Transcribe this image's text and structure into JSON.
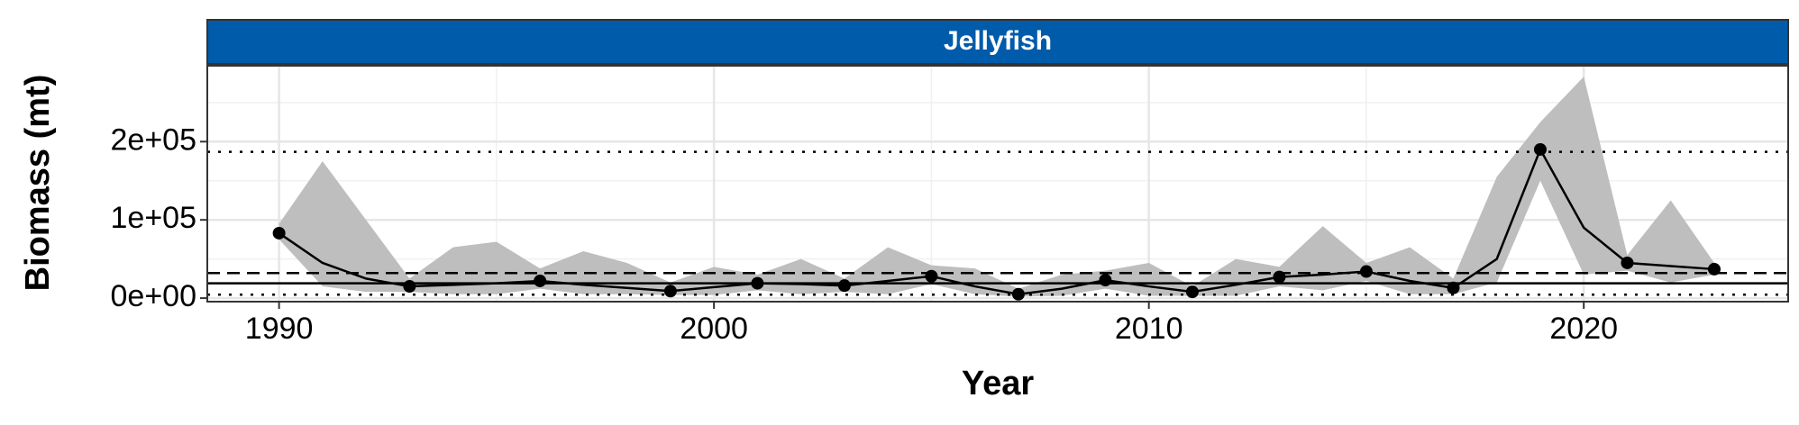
{
  "chart_data": {
    "type": "line",
    "title": "Jellyfish",
    "x_label": "Year",
    "y_label": "Biomass (mt)",
    "strip_color": "#005BAA",
    "x": [
      1990,
      1991,
      1992,
      1993,
      1994,
      1995,
      1996,
      1997,
      1998,
      1999,
      2000,
      2001,
      2002,
      2003,
      2004,
      2005,
      2006,
      2007,
      2008,
      2009,
      2010,
      2011,
      2012,
      2013,
      2014,
      2015,
      2016,
      2017,
      2018,
      2019,
      2020,
      2021,
      2022,
      2023
    ],
    "series": [
      {
        "color": "#000000",
        "values": [
          83000,
          45000,
          25000,
          15000,
          17000,
          19000,
          22000,
          17000,
          13000,
          9000,
          14000,
          19000,
          18000,
          16000,
          22000,
          28000,
          15000,
          5000,
          12000,
          23000,
          15000,
          8000,
          17000,
          27000,
          30000,
          34000,
          22000,
          13000,
          50000,
          190000,
          90000,
          45000,
          41000,
          37000
        ]
      }
    ],
    "points": [
      83000,
      null,
      null,
      15000,
      null,
      null,
      22000,
      null,
      null,
      9000,
      null,
      19000,
      null,
      16000,
      null,
      28000,
      null,
      5000,
      null,
      23000,
      null,
      8000,
      null,
      27000,
      null,
      34000,
      null,
      13000,
      null,
      190000,
      null,
      45000,
      null,
      37000
    ],
    "ribbon": {
      "color": "#bebebe",
      "upper": [
        95000,
        175000,
        100000,
        25000,
        65000,
        72000,
        38000,
        60000,
        45000,
        20000,
        40000,
        30000,
        50000,
        25000,
        65000,
        42000,
        38000,
        12000,
        30000,
        35000,
        45000,
        15000,
        50000,
        40000,
        92000,
        45000,
        65000,
        25000,
        155000,
        225000,
        283000,
        55000,
        125000,
        45000
      ],
      "lower": [
        75000,
        15000,
        8000,
        8000,
        5000,
        5000,
        12000,
        5000,
        5000,
        4000,
        4000,
        10000,
        5000,
        8000,
        5000,
        18000,
        5000,
        2000,
        3000,
        12000,
        3000,
        3000,
        3000,
        15000,
        10000,
        22000,
        5000,
        5000,
        20000,
        150000,
        30000,
        35000,
        20000,
        30000
      ]
    },
    "hlines": [
      {
        "value": 187000,
        "dash": "3,9"
      },
      {
        "value": 32000,
        "dash": "14,8"
      },
      {
        "value": 19000,
        "dash": "none"
      },
      {
        "value": 4400,
        "dash": "3,9"
      }
    ],
    "xlim": [
      1988.35,
      2024.7
    ],
    "ylim": [
      -4500,
      297000
    ],
    "xticks": [
      1990,
      2000,
      2010,
      2020
    ],
    "x_minor_ticks": [
      1995,
      2005,
      2015
    ],
    "yticks": [
      {
        "value": 0,
        "label": "0e+00"
      },
      {
        "value": 100000,
        "label": "1e+05"
      },
      {
        "value": 200000,
        "label": "2e+05"
      }
    ],
    "y_minor_ticks": [
      50000,
      150000,
      250000
    ],
    "grid": true
  }
}
